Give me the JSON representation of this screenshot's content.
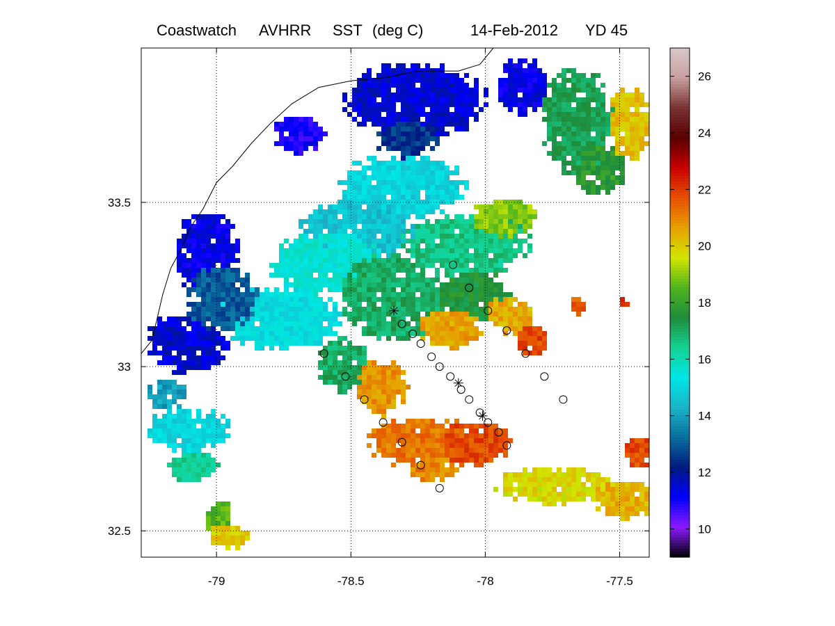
{
  "title": {
    "product": "Coastwatch",
    "sensor": "AVHRR",
    "variable": "SST",
    "units": "(deg C)",
    "date": "14-Feb-2012",
    "yearday": "YD 45"
  },
  "map": {
    "lon_range": [
      -79.28,
      -77.39
    ],
    "lat_range": [
      32.42,
      33.97
    ],
    "lon_ticks": [
      -79,
      -78.5,
      -78,
      -77.5
    ],
    "lon_tick_labels": [
      "-79",
      "-78.5",
      "-78",
      "-77.5"
    ],
    "lat_ticks": [
      32.5,
      33,
      33.5
    ],
    "lat_tick_labels": [
      "32.5",
      "33",
      "33.5"
    ],
    "grid": "dotted"
  },
  "colorbar": {
    "range": [
      9,
      27
    ],
    "ticks": [
      10,
      12,
      14,
      16,
      18,
      20,
      22,
      24,
      26
    ],
    "tick_labels": [
      "10",
      "12",
      "14",
      "16",
      "18",
      "20",
      "22",
      "24",
      "26"
    ],
    "colormap": [
      "#000000",
      "#8a1aff",
      "#0000ff",
      "#001a80",
      "#0a6e9e",
      "#1ab4c8",
      "#00e6e6",
      "#14d292",
      "#1e8c3c",
      "#50b41e",
      "#d2e600",
      "#e6a000",
      "#e65000",
      "#c80000",
      "#5a0000",
      "#7a3232",
      "#c8a0a0",
      "#d8c8c8"
    ]
  },
  "sst_regions": [
    {
      "temp": 11.5,
      "lon": -78.28,
      "lat": 33.82,
      "rx": 0.28,
      "ry": 0.12
    },
    {
      "temp": 11.3,
      "lon": -77.88,
      "lat": 33.86,
      "rx": 0.1,
      "ry": 0.09
    },
    {
      "temp": 11.0,
      "lon": -78.7,
      "lat": 33.72,
      "rx": 0.1,
      "ry": 0.06
    },
    {
      "temp": 12.5,
      "lon": -78.3,
      "lat": 33.7,
      "rx": 0.12,
      "ry": 0.06
    },
    {
      "temp": 15.0,
      "lon": -78.32,
      "lat": 33.55,
      "rx": 0.25,
      "ry": 0.1
    },
    {
      "temp": 14.6,
      "lon": -78.5,
      "lat": 33.42,
      "rx": 0.22,
      "ry": 0.1
    },
    {
      "temp": 15.5,
      "lon": -78.6,
      "lat": 33.32,
      "rx": 0.22,
      "ry": 0.1
    },
    {
      "temp": 15.2,
      "lon": -78.78,
      "lat": 33.15,
      "rx": 0.25,
      "ry": 0.1
    },
    {
      "temp": 11.3,
      "lon": -79.05,
      "lat": 33.35,
      "rx": 0.12,
      "ry": 0.14
    },
    {
      "temp": 11.5,
      "lon": -79.12,
      "lat": 33.08,
      "rx": 0.16,
      "ry": 0.1
    },
    {
      "temp": 13.0,
      "lon": -79.0,
      "lat": 33.22,
      "rx": 0.14,
      "ry": 0.1
    },
    {
      "temp": 17.0,
      "lon": -78.35,
      "lat": 33.22,
      "rx": 0.2,
      "ry": 0.14
    },
    {
      "temp": 16.6,
      "lon": -78.08,
      "lat": 33.38,
      "rx": 0.25,
      "ry": 0.1
    },
    {
      "temp": 17.5,
      "lon": -78.05,
      "lat": 33.22,
      "rx": 0.14,
      "ry": 0.08
    },
    {
      "temp": 17.0,
      "lon": -78.55,
      "lat": 33.02,
      "rx": 0.1,
      "ry": 0.09
    },
    {
      "temp": 17.2,
      "lon": -77.68,
      "lat": 33.75,
      "rx": 0.14,
      "ry": 0.17
    },
    {
      "temp": 17.8,
      "lon": -77.58,
      "lat": 33.6,
      "rx": 0.1,
      "ry": 0.08
    },
    {
      "temp": 19.0,
      "lon": -77.95,
      "lat": 33.46,
      "rx": 0.12,
      "ry": 0.06
    },
    {
      "temp": 20.2,
      "lon": -77.48,
      "lat": 33.75,
      "rx": 0.08,
      "ry": 0.12
    },
    {
      "temp": 20.6,
      "lon": -78.15,
      "lat": 33.12,
      "rx": 0.12,
      "ry": 0.06
    },
    {
      "temp": 20.5,
      "lon": -77.93,
      "lat": 33.17,
      "rx": 0.09,
      "ry": 0.06
    },
    {
      "temp": 21.8,
      "lon": -77.85,
      "lat": 33.09,
      "rx": 0.06,
      "ry": 0.05
    },
    {
      "temp": 20.8,
      "lon": -78.4,
      "lat": 32.95,
      "rx": 0.1,
      "ry": 0.09
    },
    {
      "temp": 21.2,
      "lon": -78.25,
      "lat": 32.78,
      "rx": 0.22,
      "ry": 0.08
    },
    {
      "temp": 21.8,
      "lon": -78.05,
      "lat": 32.77,
      "rx": 0.14,
      "ry": 0.07
    },
    {
      "temp": 21.0,
      "lon": -78.2,
      "lat": 32.7,
      "rx": 0.1,
      "ry": 0.04
    },
    {
      "temp": 19.8,
      "lon": -77.75,
      "lat": 32.65,
      "rx": 0.25,
      "ry": 0.06
    },
    {
      "temp": 20.4,
      "lon": -77.5,
      "lat": 32.6,
      "rx": 0.12,
      "ry": 0.06
    },
    {
      "temp": 21.8,
      "lon": -77.45,
      "lat": 32.75,
      "rx": 0.06,
      "ry": 0.05
    },
    {
      "temp": 15.0,
      "lon": -79.12,
      "lat": 32.82,
      "rx": 0.16,
      "ry": 0.07
    },
    {
      "temp": 14.0,
      "lon": -79.2,
      "lat": 32.92,
      "rx": 0.08,
      "ry": 0.05
    },
    {
      "temp": 16.4,
      "lon": -79.1,
      "lat": 32.7,
      "rx": 0.1,
      "ry": 0.05
    },
    {
      "temp": 18.5,
      "lon": -79.0,
      "lat": 32.55,
      "rx": 0.06,
      "ry": 0.06
    },
    {
      "temp": 20.0,
      "lon": -78.96,
      "lat": 32.49,
      "rx": 0.08,
      "ry": 0.04
    },
    {
      "temp": 21.5,
      "lon": -77.68,
      "lat": 33.2,
      "rx": 0.03,
      "ry": 0.03
    },
    {
      "temp": 22.0,
      "lon": -77.5,
      "lat": 33.2,
      "rx": 0.02,
      "ry": 0.02
    }
  ],
  "stations": {
    "circles": [
      {
        "lon": -78.12,
        "lat": 33.31
      },
      {
        "lon": -78.06,
        "lat": 33.24
      },
      {
        "lon": -77.99,
        "lat": 33.17
      },
      {
        "lon": -77.92,
        "lat": 33.11
      },
      {
        "lon": -77.85,
        "lat": 33.04
      },
      {
        "lon": -77.78,
        "lat": 32.97
      },
      {
        "lon": -77.71,
        "lat": 32.9
      },
      {
        "lon": -78.31,
        "lat": 33.13
      },
      {
        "lon": -78.27,
        "lat": 33.1
      },
      {
        "lon": -78.24,
        "lat": 33.07
      },
      {
        "lon": -78.2,
        "lat": 33.03
      },
      {
        "lon": -78.17,
        "lat": 33.0
      },
      {
        "lon": -78.13,
        "lat": 32.97
      },
      {
        "lon": -78.09,
        "lat": 32.93
      },
      {
        "lon": -78.06,
        "lat": 32.9
      },
      {
        "lon": -78.02,
        "lat": 32.86
      },
      {
        "lon": -77.99,
        "lat": 32.83
      },
      {
        "lon": -77.95,
        "lat": 32.8
      },
      {
        "lon": -77.92,
        "lat": 32.76
      },
      {
        "lon": -78.6,
        "lat": 33.04
      },
      {
        "lon": -78.52,
        "lat": 32.97
      },
      {
        "lon": -78.45,
        "lat": 32.9
      },
      {
        "lon": -78.38,
        "lat": 32.83
      },
      {
        "lon": -78.31,
        "lat": 32.77
      },
      {
        "lon": -78.24,
        "lat": 32.7
      },
      {
        "lon": -78.17,
        "lat": 32.63
      }
    ],
    "stars": [
      {
        "lon": -78.34,
        "lat": 33.17
      },
      {
        "lon": -78.1,
        "lat": 32.95
      },
      {
        "lon": -78.01,
        "lat": 32.85
      }
    ]
  },
  "coastline": [
    [
      -77.97,
      33.97
    ],
    [
      -78.02,
      33.92
    ],
    [
      -78.1,
      33.9
    ],
    [
      -78.25,
      33.9
    ],
    [
      -78.37,
      33.88
    ],
    [
      -78.5,
      33.87
    ],
    [
      -78.62,
      33.85
    ],
    [
      -78.72,
      33.8
    ],
    [
      -78.8,
      33.74
    ],
    [
      -78.87,
      33.68
    ],
    [
      -78.94,
      33.61
    ],
    [
      -79.0,
      33.56
    ],
    [
      -79.05,
      33.48
    ],
    [
      -79.1,
      33.42
    ],
    [
      -79.13,
      33.36
    ],
    [
      -79.17,
      33.3
    ],
    [
      -79.2,
      33.22
    ],
    [
      -79.22,
      33.15
    ],
    [
      -79.24,
      33.08
    ],
    [
      -79.28,
      33.04
    ]
  ]
}
